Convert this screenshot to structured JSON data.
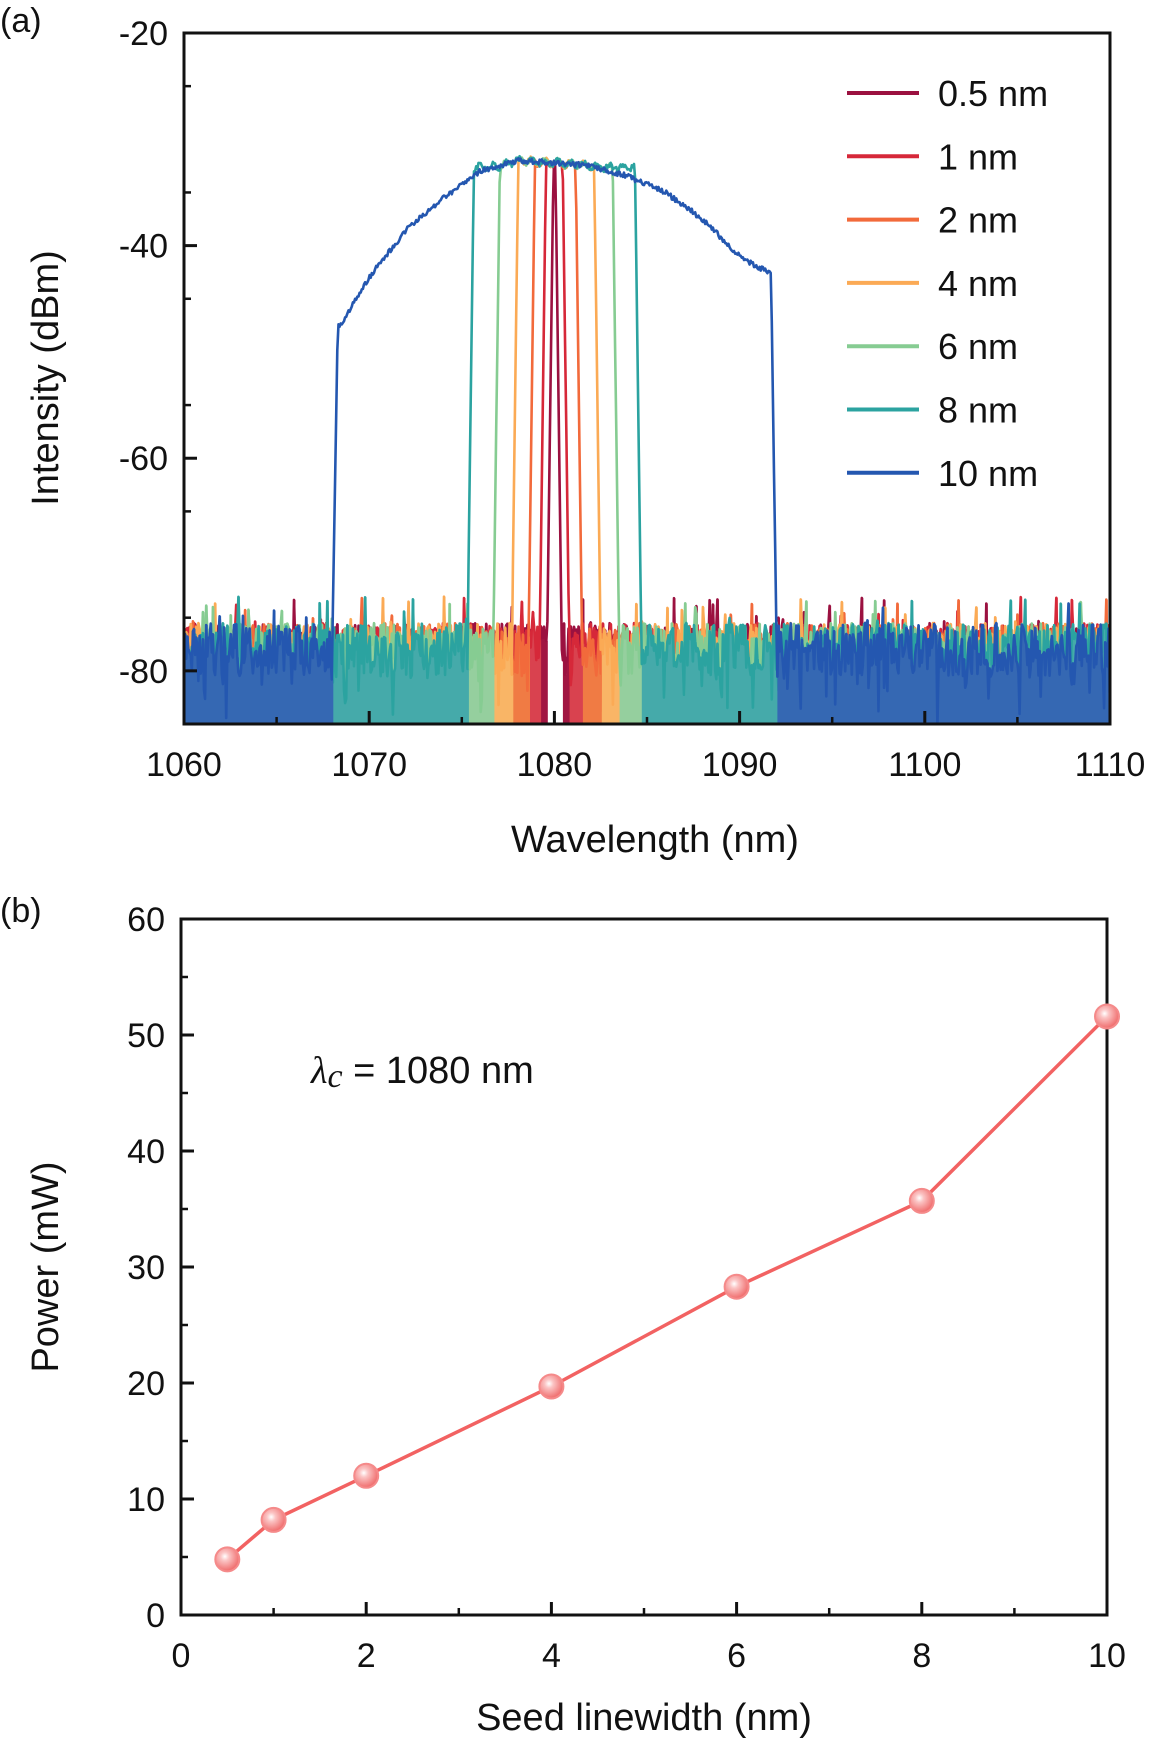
{
  "chart_data": [
    {
      "panel_label": "(a)",
      "type": "line",
      "xlabel": "Wavelength (nm)",
      "ylabel": "Intensity (dBm)",
      "xlim": [
        1060,
        1110
      ],
      "ylim": [
        -85,
        -20
      ],
      "xticks": [
        1060,
        1070,
        1080,
        1090,
        1100,
        1110
      ],
      "yticks": [
        -20,
        -40,
        -60,
        -80
      ],
      "legend_position": "top-right",
      "noise_floor_dBm": -78,
      "series": [
        {
          "name": "0.5 nm",
          "color": "#9b1140",
          "fill": "#a11642",
          "band": [
            1079.6,
            1080.4
          ]
        },
        {
          "name": "1 nm",
          "color": "#d62839",
          "fill": "#d9424f",
          "band": [
            1079.2,
            1080.8
          ]
        },
        {
          "name": "2 nm",
          "color": "#f26a3b",
          "fill": "#f07b44",
          "band": [
            1078.6,
            1081.5
          ]
        },
        {
          "name": "4 nm",
          "color": "#fbaa55",
          "fill": "#f9b566",
          "band": [
            1077.7,
            1082.5
          ]
        },
        {
          "name": "6 nm",
          "color": "#86cc92",
          "fill": "#95cf9e",
          "band": [
            1076.7,
            1083.5
          ]
        },
        {
          "name": "8 nm",
          "color": "#2ba3a0",
          "fill": "#45aaaa",
          "band": [
            1075.3,
            1084.7
          ]
        },
        {
          "name": "10 nm",
          "color": "#2457b0",
          "fill": "#3568b3",
          "band": [
            1068.0,
            1092.0
          ]
        }
      ],
      "envelope": [
        [
          1068.2,
          -48
        ],
        [
          1068.6,
          -47
        ],
        [
          1070,
          -43
        ],
        [
          1072,
          -38.5
        ],
        [
          1074,
          -35.5
        ],
        [
          1076,
          -33
        ],
        [
          1078,
          -32
        ],
        [
          1080,
          -32.2
        ],
        [
          1082,
          -32.5
        ],
        [
          1084,
          -33.5
        ],
        [
          1086,
          -35
        ],
        [
          1088,
          -37.5
        ],
        [
          1090,
          -41
        ],
        [
          1091.5,
          -42.5
        ]
      ]
    },
    {
      "panel_label": "(b)",
      "type": "line",
      "xlabel": "Seed linewidth (nm)",
      "ylabel": "Power (mW)",
      "xlim": [
        0,
        10
      ],
      "ylim": [
        0,
        60
      ],
      "xticks": [
        0,
        2,
        4,
        6,
        8,
        10
      ],
      "yticks": [
        0,
        10,
        20,
        30,
        40,
        50,
        60
      ],
      "annotation": {
        "symbol": "λ",
        "subscript": "c",
        "text": " = 1080 nm"
      },
      "color": "#f26262",
      "marker_fill": "#f58a8a",
      "x": [
        0.5,
        1,
        2,
        4,
        6,
        8,
        10
      ],
      "y": [
        4.8,
        8.2,
        12.0,
        19.7,
        28.3,
        35.7,
        51.6
      ]
    }
  ]
}
